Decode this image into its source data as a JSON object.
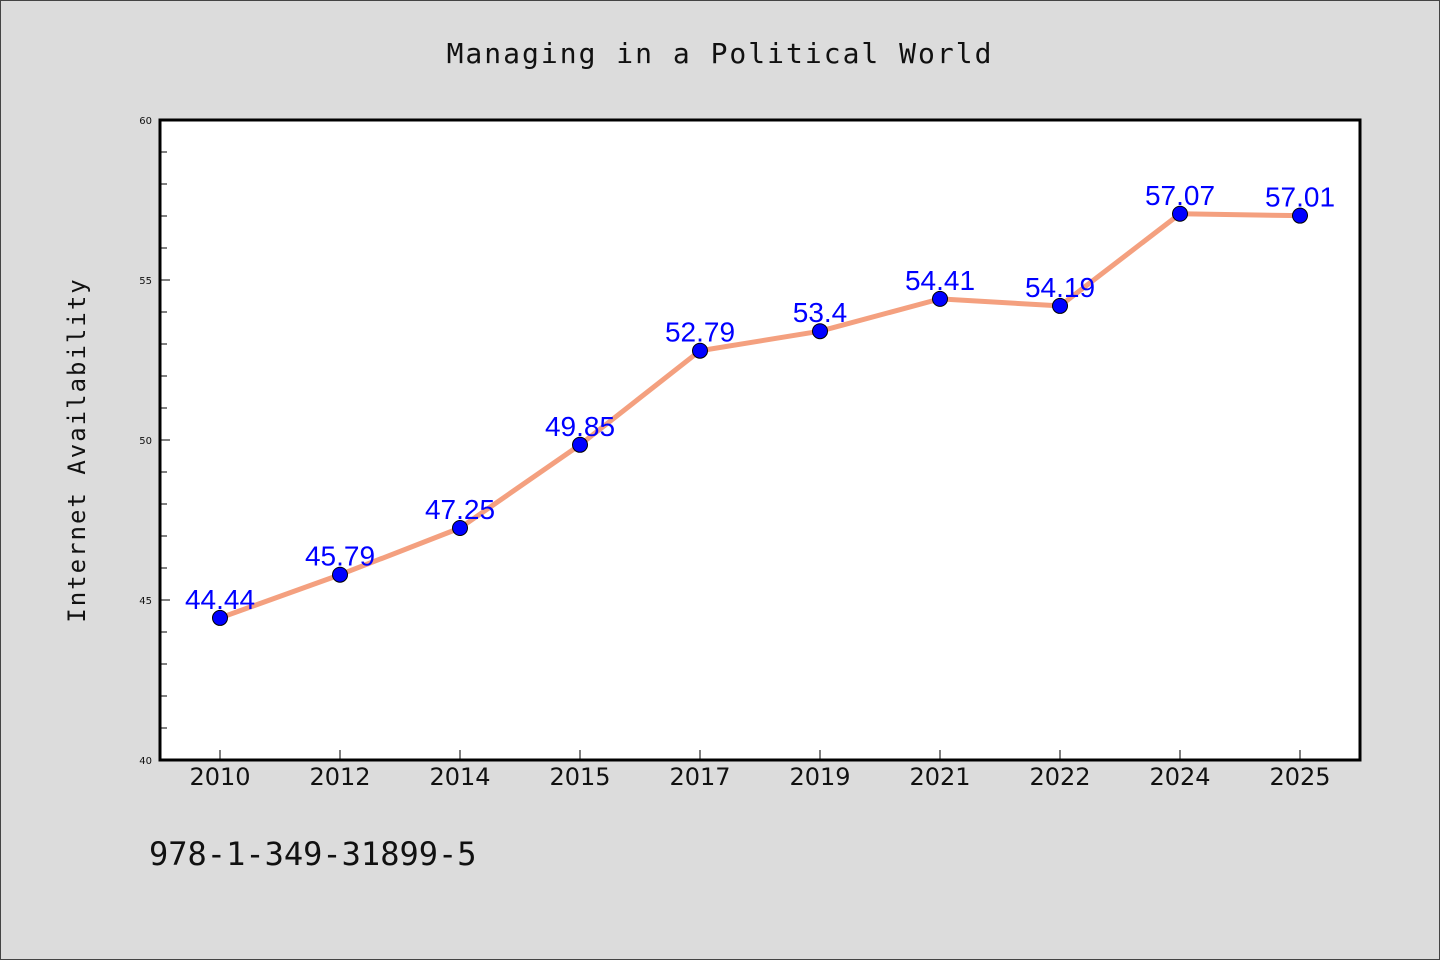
{
  "chart_data": {
    "type": "line",
    "title": "Managing in a Political World",
    "xlabel": "",
    "ylabel": "Internet Availability",
    "categories": [
      "2010",
      "2012",
      "2014",
      "2015",
      "2017",
      "2019",
      "2021",
      "2022",
      "2024",
      "2025"
    ],
    "values": [
      44.44,
      45.79,
      47.25,
      49.85,
      52.79,
      53.4,
      54.41,
      54.19,
      57.07,
      57.01
    ],
    "data_labels": [
      "44.44",
      "45.79",
      "47.25",
      "49.85",
      "52.79",
      "53.4",
      "54.41",
      "54.19",
      "57.07",
      "57.01"
    ],
    "ylim": [
      40,
      60
    ],
    "yticks": [
      "40",
      "45",
      "50",
      "55",
      "60"
    ],
    "grid": false,
    "legend": "none",
    "colors": {
      "line": "#f4a07f",
      "marker": "#0000ff",
      "data_label": "#0000ff",
      "background": "#dcdcdc",
      "plot_background": "#ffffff"
    }
  },
  "footer": {
    "isbn": "978-1-349-31899-5"
  }
}
